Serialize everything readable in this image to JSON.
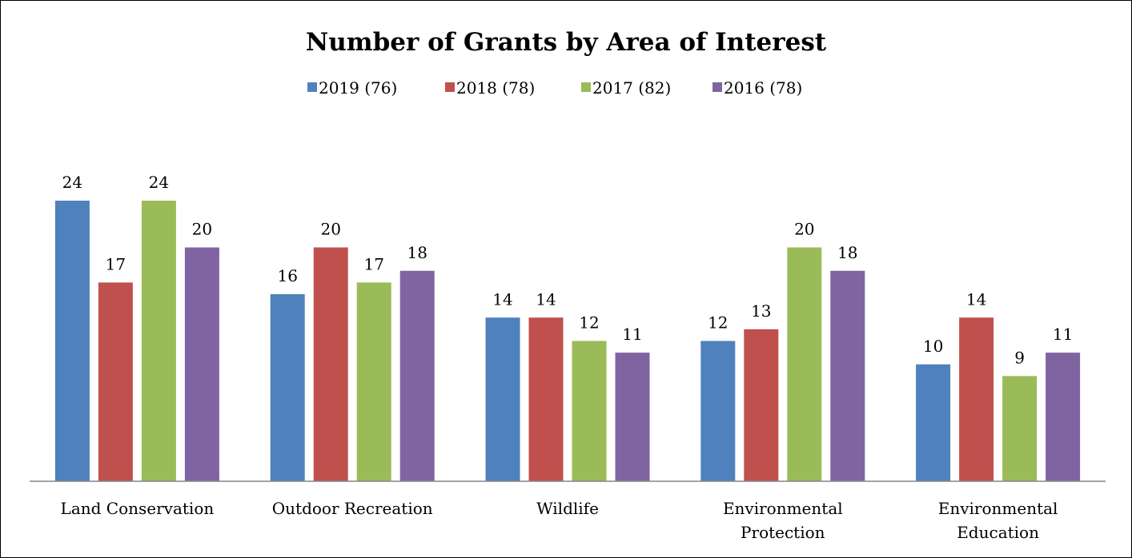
{
  "chart_data": {
    "type": "bar",
    "title": "Number of Grants by Area of Interest",
    "xlabel": "",
    "ylabel": "",
    "ylim": [
      0,
      24
    ],
    "grid": false,
    "legend_position": "top",
    "categories": [
      [
        "Land Conservation"
      ],
      [
        "Outdoor Recreation"
      ],
      [
        "Wildlife"
      ],
      [
        "Environmental",
        "Protection"
      ],
      [
        "Environmental",
        "Education"
      ]
    ],
    "series": [
      {
        "name": "2019 (76)",
        "color": "#4f81bd",
        "values": [
          24,
          16,
          14,
          12,
          10
        ]
      },
      {
        "name": "2018 (78)",
        "color": "#c0504d",
        "values": [
          17,
          20,
          14,
          13,
          14
        ]
      },
      {
        "name": "2017 (82)",
        "color": "#9bbb59",
        "values": [
          24,
          17,
          12,
          20,
          9
        ]
      },
      {
        "name": "2016 (78)",
        "color": "#8064a2",
        "values": [
          20,
          18,
          11,
          18,
          11
        ]
      }
    ]
  }
}
